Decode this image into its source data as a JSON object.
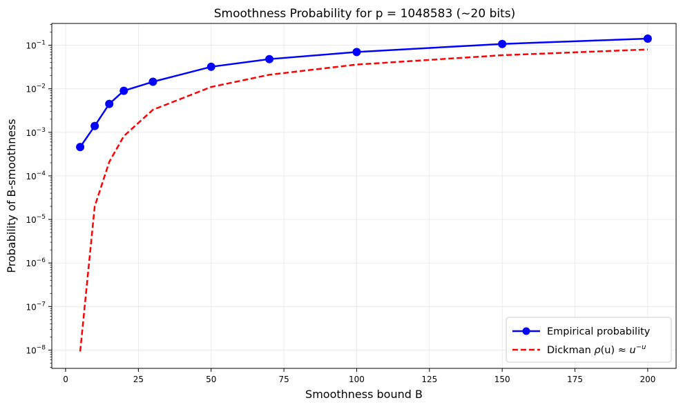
{
  "chart_data": {
    "type": "line",
    "title": "Smoothness Probability for p = 1048583 (~20 bits)",
    "xlabel": "Smoothness bound B",
    "ylabel": "Probability of B-smoothness",
    "xlim": [
      -4.75,
      209.75
    ],
    "ylim_log10": [
      -8.42,
      -0.5
    ],
    "y_scale": "log",
    "grid": true,
    "legend_position": "lower-right",
    "x_ticks": [
      0,
      25,
      50,
      75,
      100,
      125,
      150,
      175,
      200
    ],
    "y_tick_exponents": [
      -8,
      -7,
      -6,
      -5,
      -4,
      -3,
      -2,
      -1
    ],
    "y_tick_base": "10",
    "series": [
      {
        "name": "Empirical probability",
        "style": "solid-with-markers",
        "color": "#0000ff",
        "x": [
          5,
          10,
          15,
          20,
          30,
          50,
          70,
          100,
          150,
          200
        ],
        "y": [
          0.00046,
          0.0014,
          0.0045,
          0.009,
          0.0145,
          0.032,
          0.048,
          0.07,
          0.107,
          0.142
        ]
      },
      {
        "name": "Dickman ρ(u) ≈ u^{-u}",
        "style": "dashed",
        "color": "#ff0000",
        "x": [
          5,
          10,
          15,
          20,
          30,
          50,
          70,
          100,
          150,
          200
        ],
        "y": [
          9.3e-09,
          2e-05,
          0.00021,
          0.00082,
          0.0033,
          0.011,
          0.021,
          0.036,
          0.059,
          0.08
        ]
      }
    ],
    "legend": {
      "empirical_label": "Empirical probability",
      "dickman_prefix": "Dickman ",
      "dickman_rho": "ρ",
      "dickman_arg": "(u)",
      "dickman_approx": " ≈ ",
      "dickman_base": "u",
      "dickman_exp": "−u"
    }
  }
}
